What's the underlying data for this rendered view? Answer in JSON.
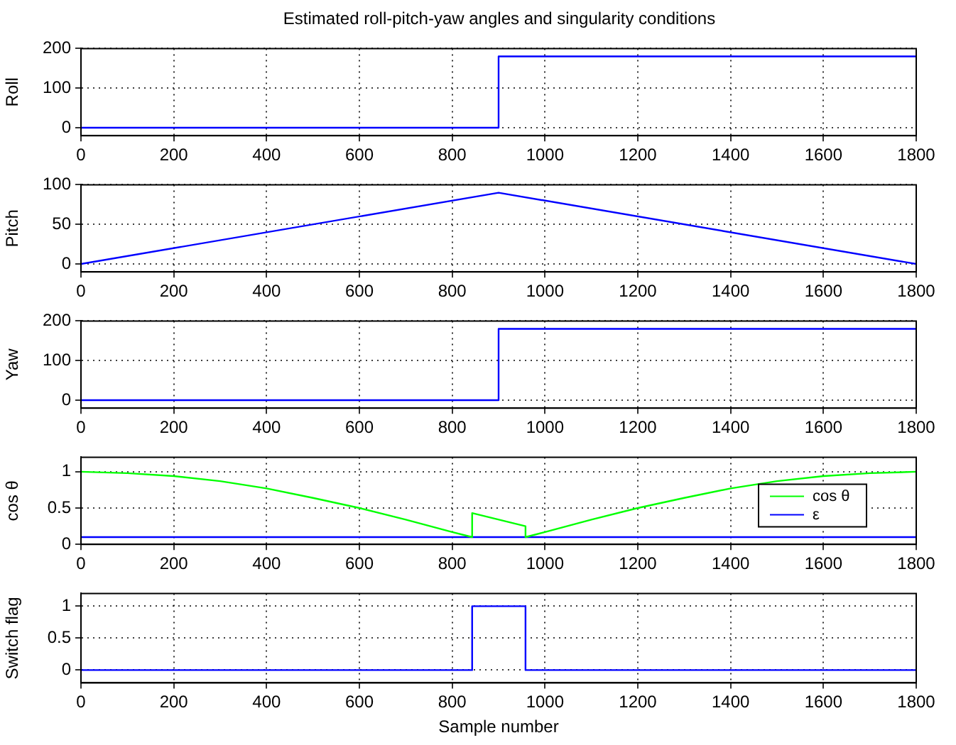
{
  "chart_data": [
    {
      "type": "line",
      "title": "Estimated roll-pitch-yaw angles and singularity conditions",
      "ylabel": "Roll",
      "xlim": [
        0,
        1800
      ],
      "xticks": [
        0,
        200,
        400,
        600,
        800,
        1000,
        1200,
        1400,
        1600,
        1800
      ],
      "ylim": [
        -20,
        200
      ],
      "yticks": [
        0,
        100,
        200
      ],
      "grid": true,
      "legend": false,
      "series": [
        {
          "color": "#0000ff",
          "x": [
            0,
            900,
            900,
            1800
          ],
          "values": [
            0,
            0,
            180,
            180
          ]
        }
      ]
    },
    {
      "type": "line",
      "ylabel": "Pitch",
      "xlim": [
        0,
        1800
      ],
      "xticks": [
        0,
        200,
        400,
        600,
        800,
        1000,
        1200,
        1400,
        1600,
        1800
      ],
      "ylim": [
        -10,
        100
      ],
      "yticks": [
        0,
        50,
        100
      ],
      "grid": true,
      "legend": false,
      "series": [
        {
          "color": "#0000ff",
          "x": [
            0,
            900,
            1800
          ],
          "values": [
            0,
            90,
            0
          ]
        }
      ]
    },
    {
      "type": "line",
      "ylabel": "Yaw",
      "xlim": [
        0,
        1800
      ],
      "xticks": [
        0,
        200,
        400,
        600,
        800,
        1000,
        1200,
        1400,
        1600,
        1800
      ],
      "ylim": [
        -20,
        200
      ],
      "yticks": [
        0,
        100,
        200
      ],
      "grid": true,
      "legend": false,
      "series": [
        {
          "color": "#0000ff",
          "x": [
            0,
            900,
            900,
            1800
          ],
          "values": [
            0,
            0,
            180,
            180
          ]
        }
      ]
    },
    {
      "type": "line",
      "ylabel": "cos θ",
      "xlim": [
        0,
        1800
      ],
      "xticks": [
        0,
        200,
        400,
        600,
        800,
        1000,
        1200,
        1400,
        1600,
        1800
      ],
      "ylim": [
        0,
        1.2
      ],
      "yticks": [
        0,
        0.5,
        1
      ],
      "grid": true,
      "legend": "right",
      "series": [
        {
          "name": "cos θ",
          "color": "#00ff00",
          "x": [
            0,
            100,
            200,
            300,
            400,
            500,
            600,
            700,
            800,
            843,
            843,
            958,
            958,
            1000,
            1100,
            1200,
            1300,
            1400,
            1500,
            1600,
            1700,
            1800
          ],
          "values": [
            1,
            0.98,
            0.94,
            0.87,
            0.77,
            0.64,
            0.5,
            0.34,
            0.17,
            0.1,
            0.43,
            0.25,
            0.1,
            0.17,
            0.34,
            0.5,
            0.64,
            0.77,
            0.87,
            0.94,
            0.98,
            1
          ]
        },
        {
          "name": "ε",
          "color": "#0000ff",
          "x": [
            0,
            1800
          ],
          "values": [
            0.1,
            0.1
          ]
        }
      ]
    },
    {
      "type": "line",
      "ylabel": "Switch flag",
      "xlabel": "Sample number",
      "xlim": [
        0,
        1800
      ],
      "xticks": [
        0,
        200,
        400,
        600,
        800,
        1000,
        1200,
        1400,
        1600,
        1800
      ],
      "ylim": [
        -0.2,
        1.2
      ],
      "yticks": [
        0,
        0.5,
        1
      ],
      "grid": true,
      "legend": false,
      "series": [
        {
          "color": "#0000ff",
          "x": [
            0,
            843,
            843,
            958,
            958,
            1800
          ],
          "values": [
            0,
            0,
            1,
            1,
            0,
            0
          ]
        }
      ]
    }
  ]
}
